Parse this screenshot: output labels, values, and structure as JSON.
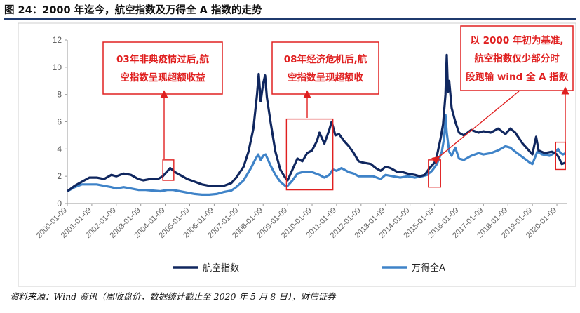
{
  "figure": {
    "title": "图 24：2000 年迄今，航空指数及万得全 A 指数的走势",
    "source": "资料来源：Wind 资讯（周收盘价，数据统计截止至 2020 年 5 月 8 日），财信证券"
  },
  "colors": {
    "aviation": "#10275f",
    "wind_a": "#3f83c8",
    "highlight": "#e02020"
  },
  "chart_data": {
    "type": "line",
    "ylim": [
      0,
      12
    ],
    "yticks": [
      "0",
      "2",
      "4",
      "6",
      "8",
      "10",
      "12"
    ],
    "xlim": [
      2000.0,
      2020.4
    ],
    "xticks": [
      {
        "label": "2000-01-09",
        "x": 2000.0
      },
      {
        "label": "2001-01-09",
        "x": 2001.0
      },
      {
        "label": "2002-01-09",
        "x": 2002.0
      },
      {
        "label": "2003-01-09",
        "x": 2003.0
      },
      {
        "label": "2004-01-09",
        "x": 2004.0
      },
      {
        "label": "2005-01-09",
        "x": 2005.0
      },
      {
        "label": "2006-01-09",
        "x": 2006.0
      },
      {
        "label": "2007-01-09",
        "x": 2007.0
      },
      {
        "label": "2008-01-09",
        "x": 2008.0
      },
      {
        "label": "2009-01-09",
        "x": 2009.0
      },
      {
        "label": "2010-01-09",
        "x": 2010.0
      },
      {
        "label": "2011-01-09",
        "x": 2011.0
      },
      {
        "label": "2012-01-09",
        "x": 2012.0
      },
      {
        "label": "2013-01-09",
        "x": 2013.0
      },
      {
        "label": "2014-01-09",
        "x": 2014.0
      },
      {
        "label": "2015-01-09",
        "x": 2015.0
      },
      {
        "label": "2016-01-09",
        "x": 2016.0
      },
      {
        "label": "2017-01-09",
        "x": 2017.0
      },
      {
        "label": "2018-01-09",
        "x": 2018.0
      },
      {
        "label": "2019-01-09",
        "x": 2019.0
      },
      {
        "label": "2020-01-09",
        "x": 2020.0
      }
    ],
    "legend_position": "bottom",
    "series": [
      {
        "name": "航空指数",
        "points": [
          [
            2000.0,
            0.9
          ],
          [
            2000.3,
            1.3
          ],
          [
            2000.6,
            1.6
          ],
          [
            2000.9,
            1.9
          ],
          [
            2001.2,
            1.9
          ],
          [
            2001.5,
            1.8
          ],
          [
            2001.8,
            2.1
          ],
          [
            2002.0,
            2.0
          ],
          [
            2002.3,
            2.2
          ],
          [
            2002.6,
            2.1
          ],
          [
            2002.9,
            1.8
          ],
          [
            2003.1,
            1.7
          ],
          [
            2003.4,
            1.8
          ],
          [
            2003.7,
            1.8
          ],
          [
            2003.9,
            2.0
          ],
          [
            2004.1,
            2.4
          ],
          [
            2004.2,
            2.6
          ],
          [
            2004.4,
            2.3
          ],
          [
            2004.6,
            2.1
          ],
          [
            2004.9,
            1.8
          ],
          [
            2005.2,
            1.6
          ],
          [
            2005.5,
            1.4
          ],
          [
            2005.8,
            1.3
          ],
          [
            2006.1,
            1.3
          ],
          [
            2006.4,
            1.3
          ],
          [
            2006.7,
            1.5
          ],
          [
            2006.9,
            1.9
          ],
          [
            2007.2,
            2.7
          ],
          [
            2007.4,
            3.8
          ],
          [
            2007.6,
            5.5
          ],
          [
            2007.75,
            8.0
          ],
          [
            2007.82,
            9.5
          ],
          [
            2007.9,
            7.5
          ],
          [
            2008.0,
            8.8
          ],
          [
            2008.08,
            9.4
          ],
          [
            2008.15,
            7.8
          ],
          [
            2008.3,
            6.0
          ],
          [
            2008.5,
            3.8
          ],
          [
            2008.7,
            2.5
          ],
          [
            2008.9,
            1.9
          ],
          [
            2009.0,
            1.7
          ],
          [
            2009.2,
            2.5
          ],
          [
            2009.4,
            3.3
          ],
          [
            2009.6,
            3.1
          ],
          [
            2009.8,
            3.7
          ],
          [
            2010.0,
            3.9
          ],
          [
            2010.2,
            4.6
          ],
          [
            2010.3,
            5.2
          ],
          [
            2010.5,
            4.4
          ],
          [
            2010.7,
            5.4
          ],
          [
            2010.8,
            6.0
          ],
          [
            2010.95,
            5.0
          ],
          [
            2011.1,
            5.1
          ],
          [
            2011.3,
            4.6
          ],
          [
            2011.5,
            4.2
          ],
          [
            2011.7,
            3.7
          ],
          [
            2011.9,
            3.1
          ],
          [
            2012.1,
            3.0
          ],
          [
            2012.4,
            2.9
          ],
          [
            2012.6,
            2.6
          ],
          [
            2012.8,
            2.4
          ],
          [
            2013.0,
            2.7
          ],
          [
            2013.2,
            2.6
          ],
          [
            2013.5,
            2.3
          ],
          [
            2013.7,
            2.3
          ],
          [
            2013.9,
            2.2
          ],
          [
            2014.2,
            2.1
          ],
          [
            2014.4,
            2.0
          ],
          [
            2014.6,
            2.1
          ],
          [
            2014.8,
            2.6
          ],
          [
            2015.0,
            3.0
          ],
          [
            2015.1,
            3.5
          ],
          [
            2015.25,
            4.8
          ],
          [
            2015.35,
            5.8
          ],
          [
            2015.45,
            8.0
          ],
          [
            2015.5,
            10.9
          ],
          [
            2015.55,
            8.2
          ],
          [
            2015.6,
            9.0
          ],
          [
            2015.7,
            7.0
          ],
          [
            2015.85,
            6.0
          ],
          [
            2016.0,
            5.2
          ],
          [
            2016.2,
            5.0
          ],
          [
            2016.5,
            5.4
          ],
          [
            2016.8,
            5.2
          ],
          [
            2017.0,
            5.3
          ],
          [
            2017.3,
            5.2
          ],
          [
            2017.6,
            5.5
          ],
          [
            2017.9,
            5.1
          ],
          [
            2018.1,
            5.5
          ],
          [
            2018.3,
            5.2
          ],
          [
            2018.6,
            4.4
          ],
          [
            2018.9,
            3.8
          ],
          [
            2019.0,
            3.6
          ],
          [
            2019.15,
            4.9
          ],
          [
            2019.25,
            3.9
          ],
          [
            2019.5,
            3.7
          ],
          [
            2019.8,
            3.8
          ],
          [
            2020.0,
            3.6
          ],
          [
            2020.1,
            3.3
          ],
          [
            2020.2,
            2.9
          ],
          [
            2020.35,
            3.0
          ]
        ]
      },
      {
        "name": "万得全A",
        "points": [
          [
            2000.0,
            0.9
          ],
          [
            2000.3,
            1.2
          ],
          [
            2000.6,
            1.4
          ],
          [
            2000.9,
            1.4
          ],
          [
            2001.2,
            1.4
          ],
          [
            2001.5,
            1.3
          ],
          [
            2001.8,
            1.2
          ],
          [
            2002.0,
            1.1
          ],
          [
            2002.3,
            1.2
          ],
          [
            2002.6,
            1.1
          ],
          [
            2002.9,
            1.0
          ],
          [
            2003.2,
            1.0
          ],
          [
            2003.5,
            0.95
          ],
          [
            2003.8,
            0.9
          ],
          [
            2004.1,
            1.0
          ],
          [
            2004.3,
            1.0
          ],
          [
            2004.6,
            0.9
          ],
          [
            2004.9,
            0.8
          ],
          [
            2005.2,
            0.7
          ],
          [
            2005.5,
            0.65
          ],
          [
            2005.8,
            0.65
          ],
          [
            2006.1,
            0.7
          ],
          [
            2006.4,
            0.85
          ],
          [
            2006.7,
            0.95
          ],
          [
            2006.9,
            1.2
          ],
          [
            2007.2,
            1.7
          ],
          [
            2007.5,
            2.6
          ],
          [
            2007.7,
            3.3
          ],
          [
            2007.8,
            3.6
          ],
          [
            2007.9,
            3.2
          ],
          [
            2008.0,
            3.5
          ],
          [
            2008.1,
            3.6
          ],
          [
            2008.3,
            2.8
          ],
          [
            2008.5,
            2.1
          ],
          [
            2008.7,
            1.6
          ],
          [
            2008.9,
            1.3
          ],
          [
            2009.0,
            1.3
          ],
          [
            2009.2,
            1.7
          ],
          [
            2009.4,
            2.2
          ],
          [
            2009.6,
            2.3
          ],
          [
            2009.8,
            2.3
          ],
          [
            2010.0,
            2.3
          ],
          [
            2010.3,
            2.1
          ],
          [
            2010.5,
            1.9
          ],
          [
            2010.7,
            2.1
          ],
          [
            2010.85,
            2.5
          ],
          [
            2011.0,
            2.4
          ],
          [
            2011.2,
            2.6
          ],
          [
            2011.5,
            2.3
          ],
          [
            2011.7,
            2.2
          ],
          [
            2011.9,
            2.0
          ],
          [
            2012.2,
            2.0
          ],
          [
            2012.5,
            2.0
          ],
          [
            2012.8,
            1.8
          ],
          [
            2013.0,
            2.1
          ],
          [
            2013.3,
            2.0
          ],
          [
            2013.6,
            1.9
          ],
          [
            2013.9,
            2.0
          ],
          [
            2014.2,
            1.9
          ],
          [
            2014.5,
            2.0
          ],
          [
            2014.7,
            2.1
          ],
          [
            2014.9,
            2.4
          ],
          [
            2015.1,
            2.9
          ],
          [
            2015.3,
            3.8
          ],
          [
            2015.4,
            4.9
          ],
          [
            2015.45,
            6.5
          ],
          [
            2015.5,
            5.2
          ],
          [
            2015.6,
            3.8
          ],
          [
            2015.7,
            3.5
          ],
          [
            2015.85,
            4.1
          ],
          [
            2016.0,
            3.3
          ],
          [
            2016.2,
            3.2
          ],
          [
            2016.5,
            3.5
          ],
          [
            2016.8,
            3.7
          ],
          [
            2017.0,
            3.6
          ],
          [
            2017.3,
            3.7
          ],
          [
            2017.6,
            3.9
          ],
          [
            2017.9,
            4.2
          ],
          [
            2018.1,
            4.1
          ],
          [
            2018.3,
            3.8
          ],
          [
            2018.6,
            3.4
          ],
          [
            2018.9,
            3.0
          ],
          [
            2019.0,
            2.9
          ],
          [
            2019.2,
            3.8
          ],
          [
            2019.4,
            3.6
          ],
          [
            2019.7,
            3.5
          ],
          [
            2019.9,
            3.7
          ],
          [
            2020.05,
            4.0
          ],
          [
            2020.15,
            3.7
          ],
          [
            2020.25,
            3.6
          ],
          [
            2020.35,
            3.7
          ]
        ]
      }
    ],
    "annotations": [
      {
        "text": [
          "03年非典疫情过后,航",
          "空指数呈现超额收益"
        ]
      },
      {
        "text": [
          "08年经济危机后,航",
          "空指数呈现超额收"
        ]
      },
      {
        "text": [
          "以 2000 年初为基准,",
          "航空指数仅少部分时",
          "段跑输 wind 全 A 指数"
        ]
      }
    ]
  }
}
